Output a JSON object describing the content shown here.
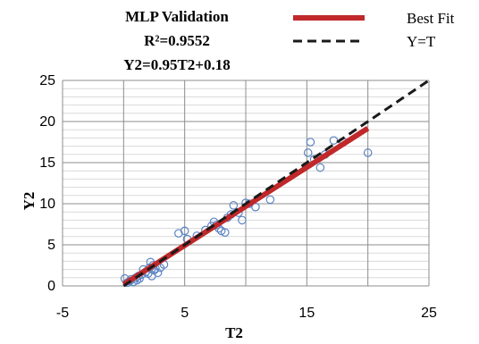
{
  "chart_data": {
    "type": "scatter",
    "title_lines": [
      "MLP Validation",
      "R²=0.9552",
      "Y2=0.95T2+0.18"
    ],
    "xlabel": "T2",
    "ylabel": "Y2",
    "xlim": [
      -5,
      25
    ],
    "ylim": [
      0,
      25
    ],
    "x_ticks": [
      -5,
      5,
      15,
      25
    ],
    "x_grid": [
      -5,
      0,
      5,
      10,
      15,
      20,
      25
    ],
    "y_ticks": [
      0,
      5,
      10,
      15,
      20,
      25
    ],
    "y_minor_step": 1,
    "grid": true,
    "legend_position": "top-right",
    "legend": [
      {
        "label": "Best Fit",
        "style": "solid",
        "color": "#c0282a"
      },
      {
        "label": "Y=T",
        "style": "dashed",
        "color": "#1a1a1a"
      }
    ],
    "best_fit": {
      "slope": 0.95,
      "intercept": 0.18,
      "x_range": [
        0,
        20
      ],
      "color": "#c0282a"
    },
    "identity_line": {
      "x_range": [
        0,
        25
      ],
      "color": "#1a1a1a"
    },
    "points_color": "#5b84c4",
    "points": [
      [
        0.1,
        0.9
      ],
      [
        0.3,
        0.4
      ],
      [
        0.5,
        0.6
      ],
      [
        0.6,
        0.8
      ],
      [
        0.8,
        0.5
      ],
      [
        1.0,
        1.0
      ],
      [
        1.1,
        0.7
      ],
      [
        1.2,
        1.2
      ],
      [
        1.3,
        0.9
      ],
      [
        1.5,
        1.4
      ],
      [
        1.6,
        2.0
      ],
      [
        1.8,
        1.7
      ],
      [
        2.0,
        1.5
      ],
      [
        2.1,
        2.2
      ],
      [
        2.2,
        2.9
      ],
      [
        2.3,
        1.2
      ],
      [
        2.4,
        2.5
      ],
      [
        2.5,
        1.9
      ],
      [
        2.6,
        2.1
      ],
      [
        2.8,
        1.6
      ],
      [
        3.0,
        2.2
      ],
      [
        3.3,
        2.6
      ],
      [
        4.5,
        6.4
      ],
      [
        5.0,
        6.7
      ],
      [
        5.2,
        5.7
      ],
      [
        6.0,
        6.1
      ],
      [
        6.7,
        6.8
      ],
      [
        7.2,
        7.3
      ],
      [
        7.4,
        7.8
      ],
      [
        7.6,
        7.4
      ],
      [
        7.8,
        7.0
      ],
      [
        8.0,
        6.7
      ],
      [
        8.3,
        6.5
      ],
      [
        8.5,
        8.3
      ],
      [
        8.8,
        8.7
      ],
      [
        9.0,
        9.8
      ],
      [
        9.4,
        8.9
      ],
      [
        9.7,
        8.0
      ],
      [
        10.0,
        10.1
      ],
      [
        10.3,
        10.0
      ],
      [
        10.8,
        9.6
      ],
      [
        12.0,
        10.5
      ],
      [
        15.1,
        16.2
      ],
      [
        15.3,
        17.5
      ],
      [
        15.6,
        15.4
      ],
      [
        16.1,
        14.4
      ],
      [
        16.5,
        16.0
      ],
      [
        17.2,
        17.7
      ],
      [
        18.0,
        17.5
      ],
      [
        20.0,
        16.2
      ]
    ]
  }
}
